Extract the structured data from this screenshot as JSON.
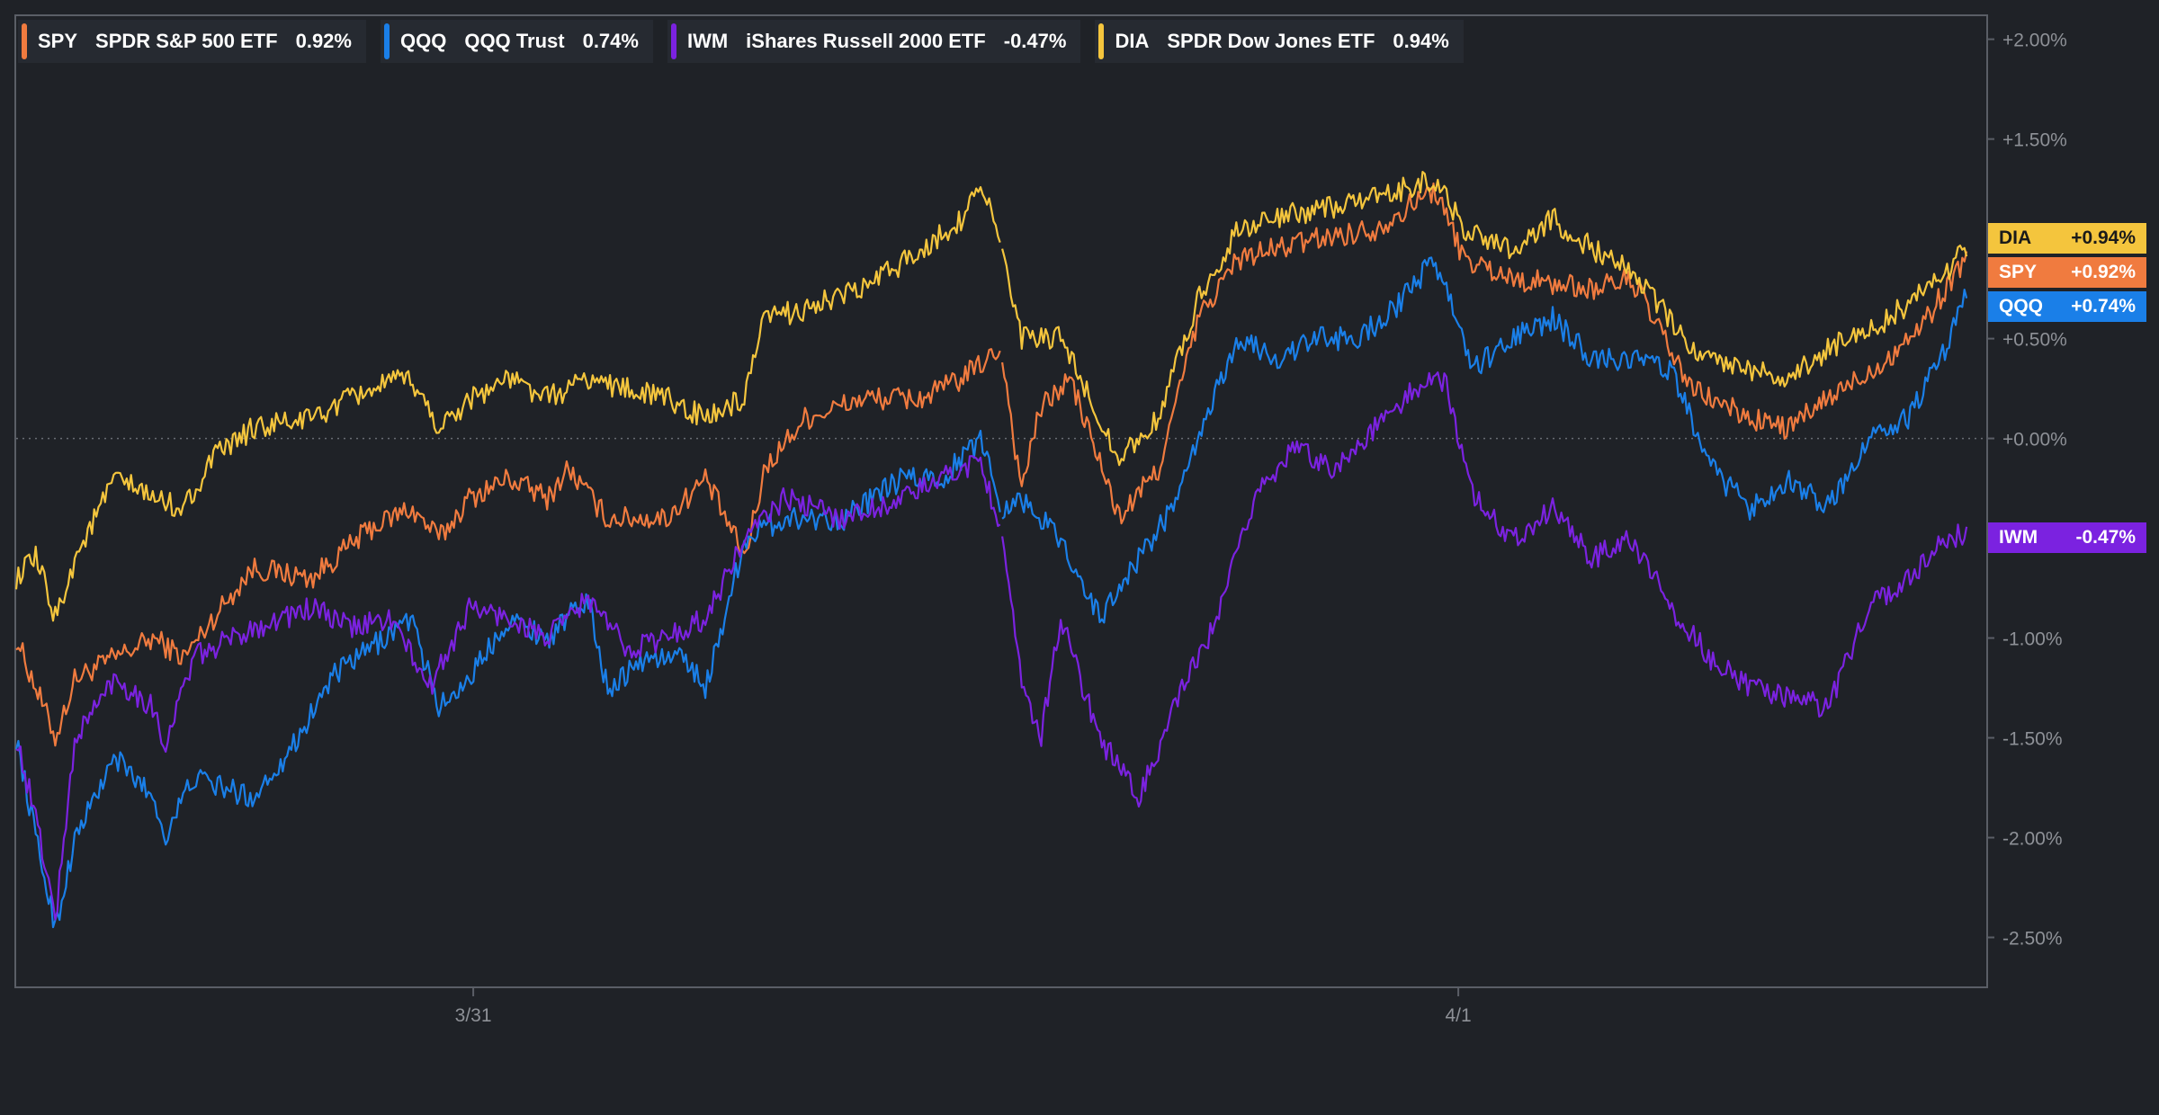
{
  "legend": [
    {
      "ticker": "SPY",
      "name": "SPDR S&P 500 ETF",
      "change": "0.92%"
    },
    {
      "ticker": "QQQ",
      "name": "QQQ Trust",
      "change": "0.74%"
    },
    {
      "ticker": "IWM",
      "name": "iShares Russell 2000 ETF",
      "change": "-0.47%"
    },
    {
      "ticker": "DIA",
      "name": "SPDR Dow Jones ETF",
      "change": "0.94%"
    }
  ],
  "end_labels": [
    {
      "ticker": "DIA",
      "value": "+0.94%"
    },
    {
      "ticker": "SPY",
      "value": "+0.92%"
    },
    {
      "ticker": "QQQ",
      "value": "+0.74%"
    },
    {
      "ticker": "IWM",
      "value": "-0.47%"
    }
  ],
  "colors": {
    "SPY": "#f07b3f",
    "QQQ": "#1a7fe8",
    "IWM": "#7b22e0",
    "DIA": "#f4c53d",
    "background": "#1f2227",
    "axis_text": "#8e9197"
  },
  "chart_data": {
    "type": "line",
    "x_ticks": [
      {
        "label": "3/31",
        "frac": 0.232
      },
      {
        "label": "4/1",
        "frac": 0.732
      }
    ],
    "y_ticks": [
      "+2.00%",
      "+1.50%",
      "+1.00%",
      "+0.50%",
      "+0.00%",
      "-0.50%",
      "-1.00%",
      "-1.50%",
      "-2.00%",
      "-2.50%"
    ],
    "y_tick_values": [
      2.0,
      1.5,
      1.0,
      0.5,
      0.0,
      -0.5,
      -1.0,
      -1.5,
      -2.0,
      -2.5
    ],
    "ylim": [
      -2.75,
      2.12
    ],
    "zero_line": true,
    "gap_at": 0.5,
    "series": [
      {
        "name": "SPY",
        "color": "#f07b3f",
        "points": [
          [
            0,
            -1.0
          ],
          [
            0.01,
            -1.25
          ],
          [
            0.02,
            -1.5
          ],
          [
            0.03,
            -1.2
          ],
          [
            0.05,
            -1.1
          ],
          [
            0.07,
            -1.0
          ],
          [
            0.085,
            -1.1
          ],
          [
            0.1,
            -0.9
          ],
          [
            0.12,
            -0.65
          ],
          [
            0.15,
            -0.7
          ],
          [
            0.18,
            -0.45
          ],
          [
            0.2,
            -0.35
          ],
          [
            0.215,
            -0.5
          ],
          [
            0.23,
            -0.3
          ],
          [
            0.25,
            -0.2
          ],
          [
            0.27,
            -0.3
          ],
          [
            0.28,
            -0.15
          ],
          [
            0.3,
            -0.4
          ],
          [
            0.33,
            -0.4
          ],
          [
            0.35,
            -0.2
          ],
          [
            0.37,
            -0.6
          ],
          [
            0.38,
            -0.15
          ],
          [
            0.4,
            0.1
          ],
          [
            0.43,
            0.2
          ],
          [
            0.46,
            0.2
          ],
          [
            0.48,
            0.3
          ],
          [
            0.5,
            0.45
          ],
          [
            0.51,
            -0.25
          ],
          [
            0.52,
            0.15
          ],
          [
            0.535,
            0.3
          ],
          [
            0.56,
            -0.4
          ],
          [
            0.58,
            -0.15
          ],
          [
            0.6,
            0.6
          ],
          [
            0.62,
            0.9
          ],
          [
            0.64,
            0.95
          ],
          [
            0.66,
            1.0
          ],
          [
            0.69,
            1.05
          ],
          [
            0.72,
            1.25
          ],
          [
            0.735,
            0.9
          ],
          [
            0.76,
            0.8
          ],
          [
            0.8,
            0.75
          ],
          [
            0.82,
            0.8
          ],
          [
            0.85,
            0.25
          ],
          [
            0.88,
            0.1
          ],
          [
            0.9,
            0.05
          ],
          [
            0.92,
            0.2
          ],
          [
            0.95,
            0.4
          ],
          [
            0.97,
            0.6
          ],
          [
            0.99,
            0.92
          ]
        ]
      },
      {
        "name": "QQQ",
        "color": "#1a7fe8",
        "points": [
          [
            0,
            -1.5
          ],
          [
            0.01,
            -2.0
          ],
          [
            0.02,
            -2.45
          ],
          [
            0.03,
            -2.0
          ],
          [
            0.05,
            -1.6
          ],
          [
            0.07,
            -1.8
          ],
          [
            0.075,
            -2.0
          ],
          [
            0.09,
            -1.7
          ],
          [
            0.12,
            -1.8
          ],
          [
            0.14,
            -1.55
          ],
          [
            0.16,
            -1.2
          ],
          [
            0.18,
            -1.05
          ],
          [
            0.2,
            -0.9
          ],
          [
            0.215,
            -1.35
          ],
          [
            0.23,
            -1.2
          ],
          [
            0.25,
            -0.9
          ],
          [
            0.27,
            -1.0
          ],
          [
            0.29,
            -0.8
          ],
          [
            0.3,
            -1.25
          ],
          [
            0.32,
            -1.1
          ],
          [
            0.34,
            -1.1
          ],
          [
            0.35,
            -1.25
          ],
          [
            0.37,
            -0.5
          ],
          [
            0.39,
            -0.4
          ],
          [
            0.42,
            -0.4
          ],
          [
            0.45,
            -0.2
          ],
          [
            0.47,
            -0.2
          ],
          [
            0.49,
            0.0
          ],
          [
            0.5,
            -0.35
          ],
          [
            0.51,
            -0.3
          ],
          [
            0.53,
            -0.5
          ],
          [
            0.55,
            -0.9
          ],
          [
            0.57,
            -0.6
          ],
          [
            0.59,
            -0.3
          ],
          [
            0.6,
            0.0
          ],
          [
            0.62,
            0.5
          ],
          [
            0.64,
            0.4
          ],
          [
            0.66,
            0.5
          ],
          [
            0.68,
            0.5
          ],
          [
            0.7,
            0.65
          ],
          [
            0.72,
            0.9
          ],
          [
            0.74,
            0.35
          ],
          [
            0.76,
            0.5
          ],
          [
            0.78,
            0.6
          ],
          [
            0.8,
            0.4
          ],
          [
            0.82,
            0.4
          ],
          [
            0.84,
            0.35
          ],
          [
            0.86,
            -0.15
          ],
          [
            0.88,
            -0.35
          ],
          [
            0.9,
            -0.2
          ],
          [
            0.92,
            -0.35
          ],
          [
            0.94,
            0.0
          ],
          [
            0.96,
            0.1
          ],
          [
            0.98,
            0.45
          ],
          [
            0.99,
            0.74
          ]
        ]
      },
      {
        "name": "IWM",
        "color": "#7b22e0",
        "points": [
          [
            0,
            -1.5
          ],
          [
            0.01,
            -1.9
          ],
          [
            0.02,
            -2.4
          ],
          [
            0.03,
            -1.5
          ],
          [
            0.05,
            -1.2
          ],
          [
            0.07,
            -1.35
          ],
          [
            0.075,
            -1.55
          ],
          [
            0.09,
            -1.1
          ],
          [
            0.12,
            -0.95
          ],
          [
            0.15,
            -0.85
          ],
          [
            0.17,
            -0.95
          ],
          [
            0.19,
            -0.9
          ],
          [
            0.21,
            -1.25
          ],
          [
            0.23,
            -0.85
          ],
          [
            0.25,
            -0.9
          ],
          [
            0.27,
            -1.0
          ],
          [
            0.29,
            -0.8
          ],
          [
            0.31,
            -1.05
          ],
          [
            0.33,
            -1.0
          ],
          [
            0.35,
            -0.9
          ],
          [
            0.37,
            -0.5
          ],
          [
            0.39,
            -0.3
          ],
          [
            0.42,
            -0.4
          ],
          [
            0.45,
            -0.3
          ],
          [
            0.47,
            -0.2
          ],
          [
            0.49,
            -0.1
          ],
          [
            0.5,
            -0.5
          ],
          [
            0.51,
            -1.2
          ],
          [
            0.52,
            -1.5
          ],
          [
            0.53,
            -0.9
          ],
          [
            0.55,
            -1.5
          ],
          [
            0.57,
            -1.8
          ],
          [
            0.59,
            -1.3
          ],
          [
            0.61,
            -0.9
          ],
          [
            0.63,
            -0.25
          ],
          [
            0.65,
            -0.05
          ],
          [
            0.67,
            -0.15
          ],
          [
            0.69,
            0.05
          ],
          [
            0.71,
            0.25
          ],
          [
            0.725,
            0.3
          ],
          [
            0.74,
            -0.3
          ],
          [
            0.76,
            -0.5
          ],
          [
            0.78,
            -0.35
          ],
          [
            0.8,
            -0.6
          ],
          [
            0.82,
            -0.5
          ],
          [
            0.84,
            -0.85
          ],
          [
            0.86,
            -1.1
          ],
          [
            0.88,
            -1.25
          ],
          [
            0.9,
            -1.3
          ],
          [
            0.92,
            -1.35
          ],
          [
            0.94,
            -0.85
          ],
          [
            0.96,
            -0.7
          ],
          [
            0.98,
            -0.5
          ],
          [
            0.99,
            -0.47
          ]
        ]
      },
      {
        "name": "DIA",
        "color": "#f4c53d",
        "points": [
          [
            0,
            -0.7
          ],
          [
            0.01,
            -0.6
          ],
          [
            0.02,
            -0.9
          ],
          [
            0.03,
            -0.6
          ],
          [
            0.05,
            -0.2
          ],
          [
            0.07,
            -0.3
          ],
          [
            0.085,
            -0.35
          ],
          [
            0.1,
            -0.1
          ],
          [
            0.12,
            0.05
          ],
          [
            0.15,
            0.1
          ],
          [
            0.18,
            0.25
          ],
          [
            0.2,
            0.3
          ],
          [
            0.215,
            0.05
          ],
          [
            0.23,
            0.2
          ],
          [
            0.25,
            0.3
          ],
          [
            0.27,
            0.2
          ],
          [
            0.29,
            0.3
          ],
          [
            0.31,
            0.25
          ],
          [
            0.33,
            0.2
          ],
          [
            0.35,
            0.1
          ],
          [
            0.37,
            0.2
          ],
          [
            0.38,
            0.6
          ],
          [
            0.4,
            0.65
          ],
          [
            0.43,
            0.75
          ],
          [
            0.46,
            0.95
          ],
          [
            0.48,
            1.1
          ],
          [
            0.49,
            1.3
          ],
          [
            0.5,
            0.95
          ],
          [
            0.51,
            0.5
          ],
          [
            0.53,
            0.5
          ],
          [
            0.56,
            -0.1
          ],
          [
            0.58,
            0.1
          ],
          [
            0.6,
            0.7
          ],
          [
            0.62,
            1.05
          ],
          [
            0.64,
            1.1
          ],
          [
            0.66,
            1.15
          ],
          [
            0.69,
            1.2
          ],
          [
            0.72,
            1.3
          ],
          [
            0.735,
            1.05
          ],
          [
            0.76,
            0.95
          ],
          [
            0.78,
            1.1
          ],
          [
            0.8,
            0.95
          ],
          [
            0.82,
            0.85
          ],
          [
            0.85,
            0.45
          ],
          [
            0.88,
            0.35
          ],
          [
            0.9,
            0.3
          ],
          [
            0.92,
            0.45
          ],
          [
            0.95,
            0.6
          ],
          [
            0.97,
            0.75
          ],
          [
            0.99,
            0.94
          ]
        ]
      }
    ]
  }
}
